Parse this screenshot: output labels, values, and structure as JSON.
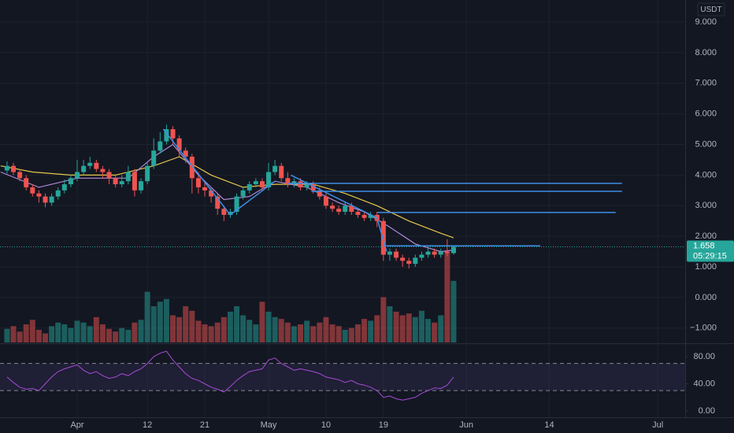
{
  "chart_data": {
    "type": "candlestick",
    "currency": "USDT",
    "x": [
      -11,
      -10,
      -9,
      -8,
      -7,
      -6,
      -5,
      -4,
      -3,
      -2,
      -1,
      0,
      1,
      2,
      3,
      4,
      5,
      6,
      7,
      8,
      9,
      10,
      11,
      12,
      13,
      14,
      15,
      16,
      17,
      18,
      19,
      20,
      21,
      22,
      23,
      24,
      25,
      26,
      27,
      28,
      29,
      30,
      31,
      32,
      33,
      34,
      35,
      36,
      37,
      38,
      39,
      40,
      41,
      42,
      43,
      44,
      45,
      46,
      47,
      48,
      49,
      50,
      51,
      52,
      53,
      54,
      55,
      56,
      57,
      58,
      59
    ],
    "xlim": [
      -12.1,
      95.3
    ],
    "xticks": [
      {
        "value": 0,
        "label": "Apr"
      },
      {
        "value": 11,
        "label": "12"
      },
      {
        "value": 20,
        "label": "21"
      },
      {
        "value": 30,
        "label": "May"
      },
      {
        "value": 39,
        "label": "10"
      },
      {
        "value": 48,
        "label": "19"
      },
      {
        "value": 61,
        "label": "Jun"
      },
      {
        "value": 74,
        "label": "14"
      },
      {
        "value": 91,
        "label": "Jul"
      }
    ],
    "ylim": [
      -1.52,
      9.72
    ],
    "yticks": [
      {
        "value": -1,
        "label": "−1.000"
      },
      {
        "value": 0,
        "label": "0.000"
      },
      {
        "value": 1,
        "label": "1.000"
      },
      {
        "value": 2,
        "label": "2.000"
      },
      {
        "value": 3,
        "label": "3.000"
      },
      {
        "value": 4,
        "label": "4.000"
      },
      {
        "value": 5,
        "label": "5.000"
      },
      {
        "value": 6,
        "label": "6.000"
      },
      {
        "value": 7,
        "label": "7.000"
      },
      {
        "value": 8,
        "label": "8.000"
      },
      {
        "value": 9,
        "label": "9.000"
      }
    ],
    "grid": true,
    "up_color": "#26a69a",
    "down_color": "#ef5350",
    "open": [
      4.15,
      4.3,
      4.1,
      3.9,
      3.6,
      3.4,
      3.3,
      3.1,
      3.3,
      3.5,
      3.7,
      3.9,
      4.1,
      4.3,
      4.4,
      4.2,
      4.1,
      3.9,
      3.7,
      3.8,
      4.1,
      3.5,
      3.8,
      4.3,
      4.8,
      5.1,
      5.5,
      5.2,
      4.8,
      4.6,
      3.9,
      3.6,
      3.5,
      3.3,
      2.9,
      2.7,
      2.8,
      3.3,
      3.5,
      3.7,
      3.8,
      3.6,
      4.1,
      4.3,
      3.9,
      3.7,
      3.8,
      3.6,
      3.7,
      3.5,
      3.3,
      3.0,
      2.9,
      2.8,
      3.0,
      2.8,
      2.7,
      2.6,
      2.7,
      2.5,
      1.4,
      1.5,
      1.3,
      1.2,
      1.1,
      1.3,
      1.4,
      1.5,
      1.4,
      1.5,
      1.45
    ],
    "high": [
      4.45,
      4.4,
      4.2,
      4.0,
      3.7,
      3.5,
      3.4,
      3.4,
      3.6,
      3.85,
      4.0,
      4.5,
      4.5,
      4.6,
      4.5,
      4.3,
      4.2,
      4.0,
      4.0,
      4.3,
      4.2,
      3.9,
      4.4,
      5.2,
      5.4,
      5.65,
      5.6,
      5.3,
      4.9,
      4.7,
      4.1,
      3.8,
      3.6,
      3.4,
      3.0,
      2.9,
      3.4,
      3.6,
      3.8,
      3.9,
      3.9,
      4.4,
      4.5,
      4.4,
      4.1,
      3.9,
      3.9,
      3.8,
      3.8,
      3.6,
      3.4,
      3.1,
      3.0,
      3.1,
      3.1,
      2.9,
      2.8,
      2.8,
      2.8,
      2.6,
      1.6,
      1.6,
      1.4,
      1.3,
      1.4,
      1.5,
      1.6,
      1.6,
      1.6,
      1.9,
      1.7
    ],
    "low": [
      4.05,
      4.0,
      3.8,
      3.5,
      3.3,
      3.1,
      2.95,
      3.0,
      3.2,
      3.4,
      3.6,
      3.8,
      4.0,
      4.2,
      4.1,
      3.9,
      3.7,
      3.6,
      3.6,
      3.7,
      3.3,
      3.4,
      3.7,
      4.2,
      4.7,
      5.0,
      5.0,
      4.6,
      4.4,
      3.4,
      3.4,
      3.3,
      3.1,
      2.7,
      2.5,
      2.6,
      2.7,
      3.2,
      3.4,
      3.6,
      3.5,
      3.5,
      4.0,
      3.8,
      3.6,
      3.6,
      3.5,
      3.5,
      3.4,
      3.2,
      2.9,
      2.8,
      2.7,
      2.7,
      2.7,
      2.6,
      2.5,
      2.5,
      2.3,
      1.2,
      1.2,
      1.2,
      1.0,
      0.95,
      1.0,
      1.2,
      1.3,
      1.3,
      1.3,
      1.35,
      1.4
    ],
    "close": [
      4.3,
      4.1,
      3.9,
      3.6,
      3.4,
      3.3,
      3.1,
      3.3,
      3.5,
      3.7,
      3.9,
      4.1,
      4.3,
      4.4,
      4.2,
      4.1,
      3.9,
      3.7,
      3.8,
      4.1,
      3.5,
      3.8,
      4.3,
      4.8,
      5.1,
      5.5,
      5.2,
      4.8,
      4.6,
      3.9,
      3.6,
      3.5,
      3.3,
      2.9,
      2.7,
      2.8,
      3.3,
      3.5,
      3.7,
      3.8,
      3.6,
      4.1,
      4.3,
      3.9,
      3.7,
      3.8,
      3.6,
      3.7,
      3.5,
      3.3,
      3.0,
      2.9,
      2.8,
      3.0,
      2.8,
      2.7,
      2.6,
      2.7,
      2.5,
      1.4,
      1.5,
      1.3,
      1.2,
      1.1,
      1.3,
      1.4,
      1.5,
      1.4,
      1.5,
      1.45,
      1.658
    ],
    "volume": [
      15,
      18,
      12,
      20,
      25,
      14,
      10,
      18,
      22,
      20,
      16,
      24,
      22,
      18,
      28,
      20,
      15,
      12,
      16,
      14,
      22,
      25,
      56,
      40,
      45,
      48,
      30,
      28,
      40,
      35,
      24,
      20,
      18,
      22,
      28,
      34,
      40,
      30,
      25,
      20,
      45,
      34,
      28,
      26,
      22,
      18,
      20,
      24,
      18,
      22,
      28,
      20,
      18,
      14,
      16,
      20,
      26,
      24,
      30,
      50,
      40,
      34,
      30,
      32,
      28,
      35,
      26,
      22,
      30,
      100,
      68
    ],
    "moving_averages": [
      {
        "color": "#e6c84a",
        "x": [
          -12,
          -7,
          -1,
          6,
          12,
          16,
          21,
          26,
          31,
          37,
          42,
          47,
          52,
          57,
          59
        ],
        "values": [
          4.3,
          4.1,
          4.0,
          4.0,
          4.3,
          4.6,
          4.0,
          3.6,
          3.7,
          3.7,
          3.4,
          3.0,
          2.5,
          2.1,
          1.95
        ]
      },
      {
        "color": "#b08ad8",
        "x": [
          -12,
          -6,
          0,
          8,
          12,
          15,
          19,
          23,
          27,
          31,
          36,
          41,
          45,
          49,
          53,
          57,
          59
        ],
        "values": [
          4.1,
          3.6,
          3.9,
          3.9,
          4.6,
          5.0,
          4.0,
          3.2,
          3.3,
          3.8,
          3.6,
          3.1,
          2.8,
          2.3,
          1.75,
          1.5,
          1.55
        ]
      }
    ],
    "trend_lines": [
      {
        "x": [
          13.5,
          24
        ],
        "values": [
          5.5,
          2.7
        ]
      },
      {
        "x": [
          24,
          31
        ],
        "values": [
          2.7,
          3.8
        ]
      },
      {
        "x": [
          33.5,
          47
        ],
        "values": [
          4.0,
          2.6
        ]
      },
      {
        "x": [
          47,
          48.5
        ],
        "values": [
          2.6,
          1.5
        ]
      }
    ],
    "levels": [
      {
        "x": [
          33,
          85.4
        ],
        "value": 3.73
      },
      {
        "x": [
          36.7,
          85.4
        ],
        "value": 3.47
      },
      {
        "x": [
          47,
          84.4
        ],
        "value": 2.78
      },
      {
        "x": [
          48.4,
          72.6
        ],
        "value": 1.69
      }
    ],
    "level_color": "#3d8ee6",
    "last_price": {
      "value": 1.658,
      "countdown": "05:29:15"
    },
    "rsi": {
      "values": [
        50,
        42,
        35,
        32,
        33,
        30,
        40,
        50,
        58,
        62,
        65,
        68,
        60,
        55,
        58,
        52,
        48,
        50,
        55,
        52,
        58,
        62,
        70,
        80,
        85,
        88,
        75,
        65,
        55,
        48,
        45,
        40,
        35,
        32,
        28,
        36,
        45,
        52,
        58,
        60,
        62,
        75,
        78,
        70,
        65,
        60,
        62,
        60,
        58,
        55,
        50,
        48,
        46,
        42,
        45,
        40,
        38,
        35,
        30,
        20,
        22,
        18,
        16,
        18,
        20,
        26,
        30,
        34,
        33,
        38,
        50
      ],
      "ylim": [
        -9.3,
        98.6
      ],
      "yticks": [
        {
          "value": 0,
          "label": "0.00"
        },
        {
          "value": 40,
          "label": "40.00"
        },
        {
          "value": 80,
          "label": "80.00"
        }
      ],
      "bands": [
        30,
        70
      ],
      "color": "#a64bd6"
    }
  }
}
